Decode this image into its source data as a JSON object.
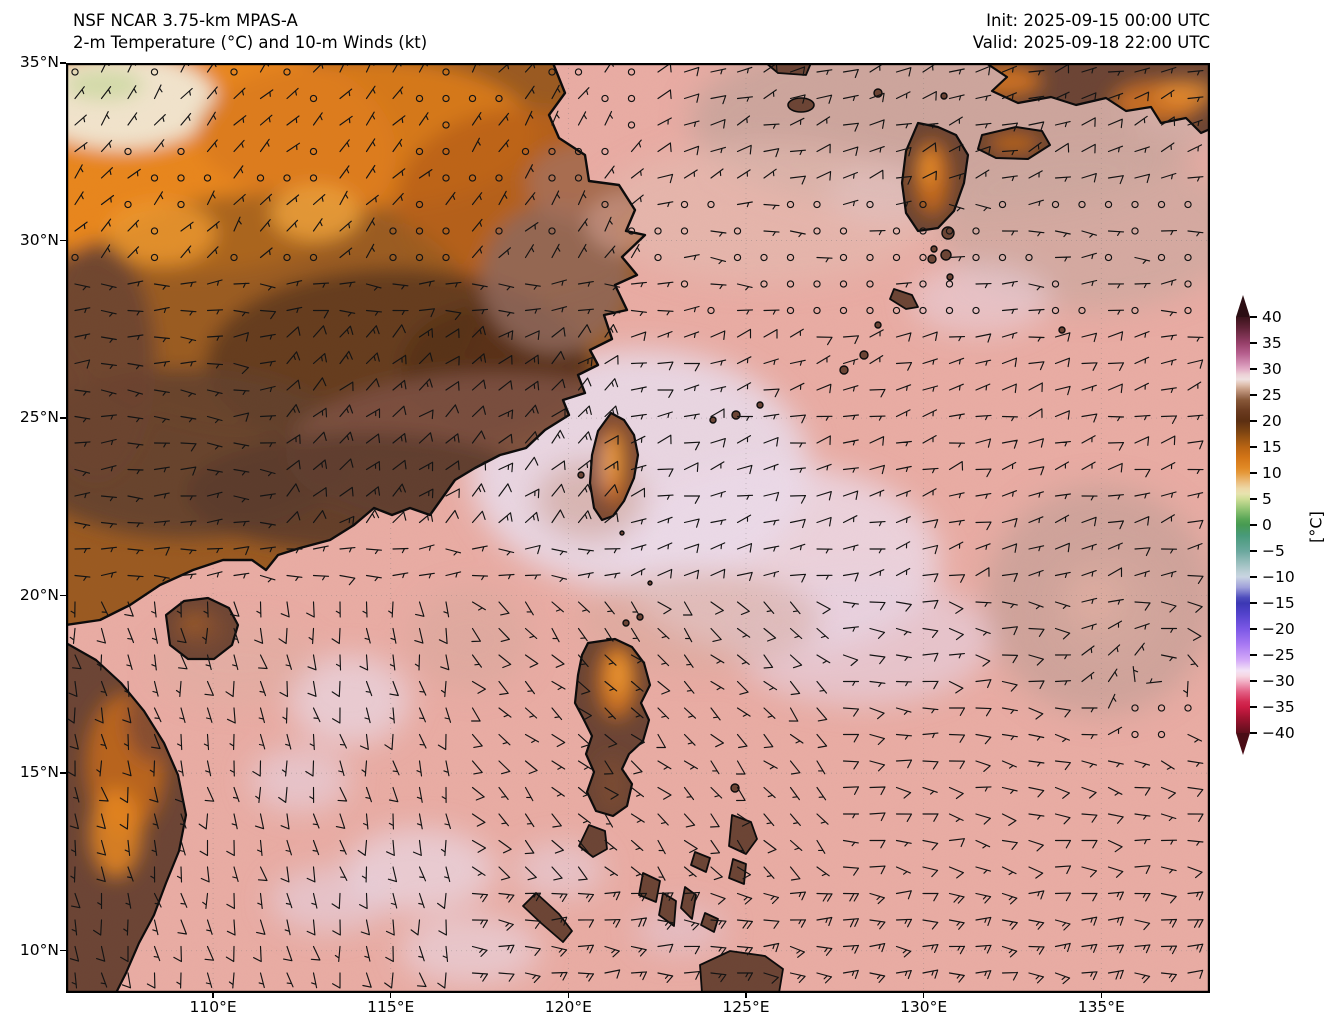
{
  "header": {
    "title_line1": "NSF NCAR 3.75-km MPAS-A",
    "title_line2": "2-m Temperature (°C) and 10-m Winds (kt)",
    "init_label": "Init: 2025-09-15 00:00 UTC",
    "valid_label": "Valid: 2025-09-18 22:00 UTC"
  },
  "axes": {
    "lon_range": [
      105.86,
      138.06
    ],
    "lat_range": [
      8.81,
      35.0
    ],
    "x_ticks": [
      {
        "lon": 110,
        "label": "110°E"
      },
      {
        "lon": 115,
        "label": "115°E"
      },
      {
        "lon": 120,
        "label": "120°E"
      },
      {
        "lon": 125,
        "label": "125°E"
      },
      {
        "lon": 130,
        "label": "130°E"
      },
      {
        "lon": 135,
        "label": "135°E"
      }
    ],
    "y_ticks": [
      {
        "lat": 35,
        "label": "35°N"
      },
      {
        "lat": 30,
        "label": "30°N"
      },
      {
        "lat": 25,
        "label": "25°N"
      },
      {
        "lat": 20,
        "label": "20°N"
      },
      {
        "lat": 15,
        "label": "15°N"
      },
      {
        "lat": 10,
        "label": "10°N"
      }
    ]
  },
  "colorbar": {
    "label": "[°C]",
    "vmin": -40,
    "vmax": 40,
    "extend": "both",
    "tick_values": [
      40,
      35,
      30,
      25,
      20,
      15,
      10,
      5,
      0,
      -5,
      -10,
      -15,
      -20,
      -25,
      -30,
      -35,
      -40
    ],
    "tick_labels": [
      "40",
      "35",
      "30",
      "25",
      "20",
      "15",
      "10",
      "5",
      "0",
      "−5",
      "−10",
      "−15",
      "−20",
      "−25",
      "−30",
      "−35",
      "−40"
    ],
    "stops": [
      {
        "v": 40,
        "c": "#3b131b"
      },
      {
        "v": 38,
        "c": "#5e2236"
      },
      {
        "v": 35,
        "c": "#97406a"
      },
      {
        "v": 33,
        "c": "#b65f8e"
      },
      {
        "v": 31,
        "c": "#d490b4"
      },
      {
        "v": 30,
        "c": "#e2abc6"
      },
      {
        "v": 29,
        "c": "#ecd0d6"
      },
      {
        "v": 28,
        "c": "#efe1e1"
      },
      {
        "v": 27,
        "c": "#dfbfae"
      },
      {
        "v": 26,
        "c": "#c49a82"
      },
      {
        "v": 25,
        "c": "#a3765c"
      },
      {
        "v": 24,
        "c": "#875738"
      },
      {
        "v": 22,
        "c": "#6b3b20"
      },
      {
        "v": 20,
        "c": "#5c2f12"
      },
      {
        "v": 18,
        "c": "#7c4412"
      },
      {
        "v": 16,
        "c": "#a45a13"
      },
      {
        "v": 15,
        "c": "#b96413"
      },
      {
        "v": 13,
        "c": "#d37517"
      },
      {
        "v": 11,
        "c": "#e18a26"
      },
      {
        "v": 10,
        "c": "#e59a3c"
      },
      {
        "v": 8,
        "c": "#ecc488"
      },
      {
        "v": 7,
        "c": "#edd9a8"
      },
      {
        "v": 6,
        "c": "#e7e3ae"
      },
      {
        "v": 5,
        "c": "#cedd96"
      },
      {
        "v": 3,
        "c": "#8fc272"
      },
      {
        "v": 1,
        "c": "#55a455"
      },
      {
        "v": 0,
        "c": "#479a52"
      },
      {
        "v": -2,
        "c": "#489a7a"
      },
      {
        "v": -5,
        "c": "#6ba89e"
      },
      {
        "v": -7,
        "c": "#94bcba"
      },
      {
        "v": -9,
        "c": "#bccfd6"
      },
      {
        "v": -10,
        "c": "#c9d4e2"
      },
      {
        "v": -12,
        "c": "#9fa0da"
      },
      {
        "v": -14,
        "c": "#4d4cbc"
      },
      {
        "v": -15,
        "c": "#3c38b4"
      },
      {
        "v": -17,
        "c": "#5242cb"
      },
      {
        "v": -20,
        "c": "#7c58e6"
      },
      {
        "v": -23,
        "c": "#a97af3"
      },
      {
        "v": -26,
        "c": "#d4aaf8"
      },
      {
        "v": -28,
        "c": "#f3e3f6"
      },
      {
        "v": -29,
        "c": "#f6d6e2"
      },
      {
        "v": -30,
        "c": "#f3b3c8"
      },
      {
        "v": -32,
        "c": "#e36287"
      },
      {
        "v": -34,
        "c": "#d32a52"
      },
      {
        "v": -35,
        "c": "#cc1c44"
      },
      {
        "v": -37,
        "c": "#a01330"
      },
      {
        "v": -40,
        "c": "#5e0f1c"
      }
    ]
  },
  "chart_data": {
    "type": "weather-map",
    "field": "2-m temperature",
    "field_units": "°C",
    "overlay": "10-m wind barbs",
    "overlay_units": "kt",
    "ocean_base_temp_c": 28,
    "regions": [
      {
        "name": "china-interior-north",
        "approx_temp_c": 12,
        "appearance": "bright orange"
      },
      {
        "name": "china-mountain-tops-northwest",
        "approx_temp_c": 3,
        "appearance": "white-green specks"
      },
      {
        "name": "south-china-guangdong-guangxi",
        "approx_temp_c": 22,
        "appearance": "dark brown"
      },
      {
        "name": "china-coastal-zhejiang-fujian",
        "approx_temp_c": 25,
        "appearance": "gray-brown"
      },
      {
        "name": "taiwan-central-mountains",
        "approx_temp_c": 14,
        "appearance": "orange core"
      },
      {
        "name": "taiwan-coastal-plain",
        "approx_temp_c": 26,
        "appearance": "pale pink-brown"
      },
      {
        "name": "luzon-mountains",
        "approx_temp_c": 16,
        "appearance": "orange core"
      },
      {
        "name": "philippines-lowlands",
        "approx_temp_c": 23,
        "appearance": "brown"
      },
      {
        "name": "hainan",
        "approx_temp_c": 23,
        "appearance": "brown"
      },
      {
        "name": "vietnam-interior",
        "approx_temp_c": 18,
        "appearance": "brown with orange highlands"
      },
      {
        "name": "japan-kyushu-honshu",
        "approx_temp_c": 17,
        "appearance": "brown with orange interior"
      },
      {
        "name": "tropical-west-pacific-ocean",
        "approx_temp_c": 28,
        "appearance": "salmon pink"
      },
      {
        "name": "warm-sst-patches",
        "approx_temp_c": 29,
        "appearance": "pale lavender-white"
      },
      {
        "name": "seas-near-japan",
        "approx_temp_c": 25,
        "appearance": "mauve gray"
      },
      {
        "name": "cyclonic-swirl-sea-surface",
        "approx_temp_c": 26,
        "appearance": "mauve gray swirl near 136.7E 18N"
      }
    ],
    "wind_field": {
      "units": "kt",
      "calm_threshold_kt": 3,
      "vortex": {
        "name": "cyclonic-circulation",
        "lon": 136.65,
        "lat": 18.05,
        "radius_deg": 3.6,
        "speed": 11
      },
      "regimes": [
        {
          "name": "north-china-light-variable",
          "lat_min": 29.5,
          "lat_max": 35.1,
          "lon_min": 105,
          "lon_max": 122,
          "dir_from": 40,
          "speed": 4.5
        },
        {
          "name": "yellow-sea-east-japan-ene",
          "lat_min": 31.5,
          "lat_max": 35.1,
          "lon_min": 122,
          "lon_max": 139,
          "dir_from": 70,
          "speed": 7
        },
        {
          "name": "subtropical-ridge-calm-belt",
          "lat_min": 27.5,
          "lat_max": 31.5,
          "lon_min": 122,
          "lon_max": 139,
          "dir_from": 90,
          "speed": 3.2
        },
        {
          "name": "taiwan-strait-ne-monsoon",
          "lat_min": 21.5,
          "lat_max": 27.5,
          "lon_min": 112,
          "lon_max": 121.5,
          "dir_from": 50,
          "speed": 13
        },
        {
          "name": "philippine-sea-ne-e",
          "lat_min": 20,
          "lat_max": 27.5,
          "lon_min": 121.5,
          "lon_max": 139,
          "dir_from": 75,
          "speed": 7
        },
        {
          "name": "south-china-sea-southerly",
          "lat_min": 8.5,
          "lat_max": 20,
          "lon_min": 105,
          "lon_max": 117,
          "dir_from": 170,
          "speed": 7
        },
        {
          "name": "luzon-east-se",
          "lat_min": 12,
          "lat_max": 20,
          "lon_min": 117,
          "lon_max": 127,
          "dir_from": 135,
          "speed": 7
        },
        {
          "name": "trades-ese",
          "lat_min": 12,
          "lat_max": 20,
          "lon_min": 127,
          "lon_max": 139,
          "dir_from": 100,
          "speed": 8
        },
        {
          "name": "deep-tropics-easterlies",
          "lat_min": 8.5,
          "lat_max": 12,
          "lon_min": 117,
          "lon_max": 139,
          "dir_from": 95,
          "speed": 14
        }
      ]
    }
  }
}
